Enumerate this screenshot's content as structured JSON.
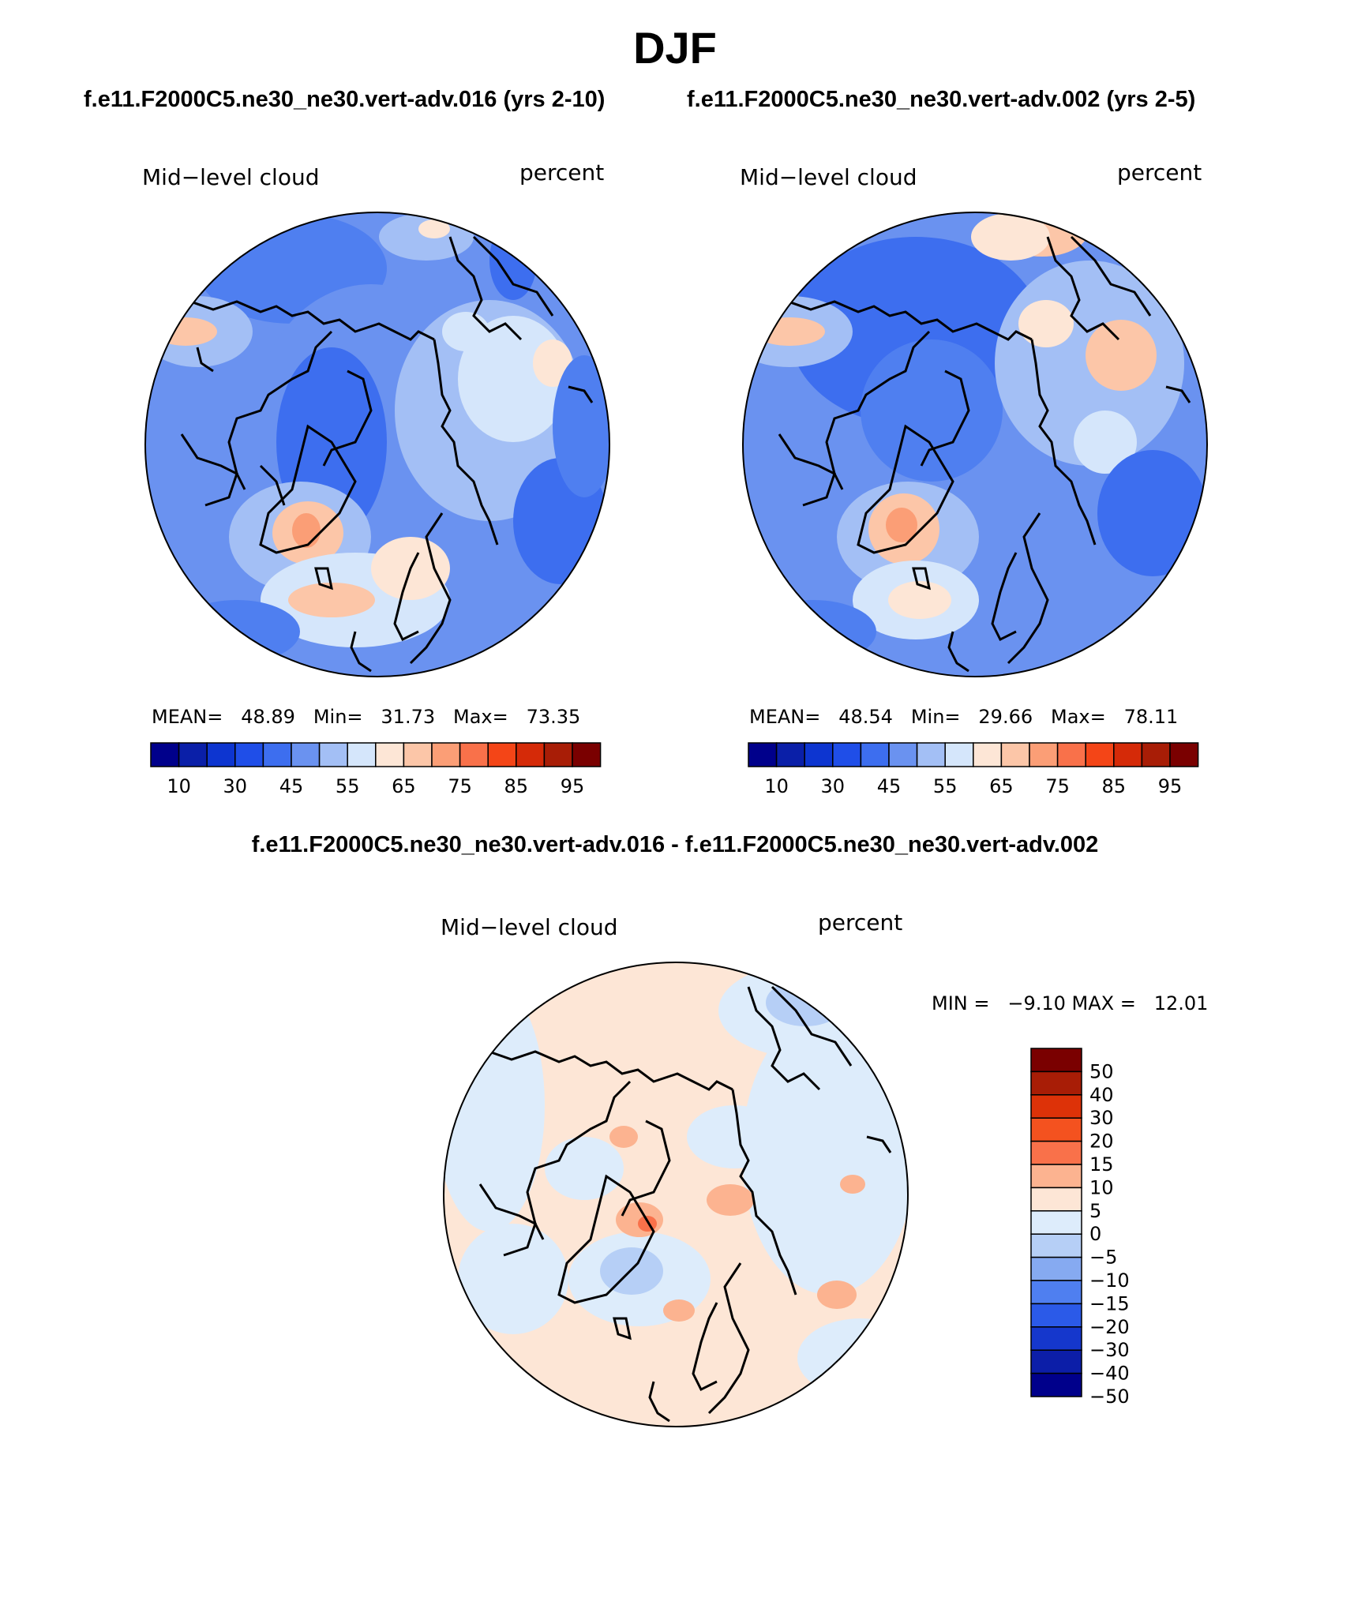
{
  "figure": {
    "title": "DJF",
    "case_a_title": "f.e11.F2000C5.ne30_ne30.vert-adv.016 (yrs 2-10)",
    "case_b_title": "f.e11.F2000C5.ne30_ne30.vert-adv.002 (yrs 2-5)",
    "diff_title": "f.e11.F2000C5.ne30_ne30.vert-adv.016 - f.e11.F2000C5.ne30_ne30.vert-adv.002"
  },
  "panels": [
    {
      "variable": "Mid−level cloud",
      "units": "percent",
      "stats": "MEAN=   48.89   Min=   31.73   Max=   73.35"
    },
    {
      "variable": "Mid−level cloud",
      "units": "percent",
      "stats": "MEAN=   48.54   Min=   29.66   Max=   78.11"
    }
  ],
  "diff_panel": {
    "variable": "Mid−level cloud",
    "units": "percent",
    "stats": "MIN =   −9.10 MAX =   12.01"
  },
  "colorbar_mean": {
    "colors": [
      "#00008b",
      "#0a1fa8",
      "#0d35d0",
      "#1f4ee8",
      "#3d6eef",
      "#6a92f0",
      "#a3bff5",
      "#d5e6fb",
      "#fde6d6",
      "#fcc6a8",
      "#fb9e76",
      "#f9714a",
      "#f44517",
      "#d52a08",
      "#a81d06",
      "#7a0000"
    ],
    "tick_labels": [
      "10",
      "30",
      "45",
      "55",
      "65",
      "75",
      "85",
      "95"
    ]
  },
  "colorbar_diff": {
    "colors": [
      "#7a0000",
      "#a81d06",
      "#dd3208",
      "#f4521f",
      "#f9714a",
      "#fcb390",
      "#fde6d6",
      "#ddecfb",
      "#b6cff6",
      "#86aaf1",
      "#4f7ff0",
      "#2b5ae8",
      "#1537cc",
      "#0c1ea8",
      "#00008b"
    ],
    "tick_labels": [
      "50",
      "40",
      "30",
      "20",
      "15",
      "10",
      "5",
      "0",
      "−5",
      "−10",
      "−15",
      "−20",
      "−30",
      "−40",
      "−50"
    ]
  },
  "chart_data": {
    "type": "heatmap",
    "projection": "polar stereographic (northern hemisphere)",
    "season": "DJF",
    "variable": "Mid-level cloud",
    "units": "percent",
    "panels": [
      {
        "case": "f.e11.F2000C5.ne30_ne30.vert-adv.016 (yrs 2-10)",
        "mean": 48.89,
        "min": 31.73,
        "max": 73.35,
        "levels": [
          10,
          20,
          30,
          40,
          45,
          50,
          55,
          60,
          65,
          70,
          75,
          80,
          85,
          90,
          95
        ]
      },
      {
        "case": "f.e11.F2000C5.ne30_ne30.vert-adv.002 (yrs 2-5)",
        "mean": 48.54,
        "min": 29.66,
        "max": 78.11,
        "levels": [
          10,
          20,
          30,
          40,
          45,
          50,
          55,
          60,
          65,
          70,
          75,
          80,
          85,
          90,
          95
        ]
      },
      {
        "case": "difference",
        "min": -9.1,
        "max": 12.01,
        "levels": [
          -50,
          -40,
          -30,
          -20,
          -15,
          -10,
          -5,
          0,
          5,
          10,
          15,
          20,
          30,
          40,
          50
        ]
      }
    ]
  }
}
